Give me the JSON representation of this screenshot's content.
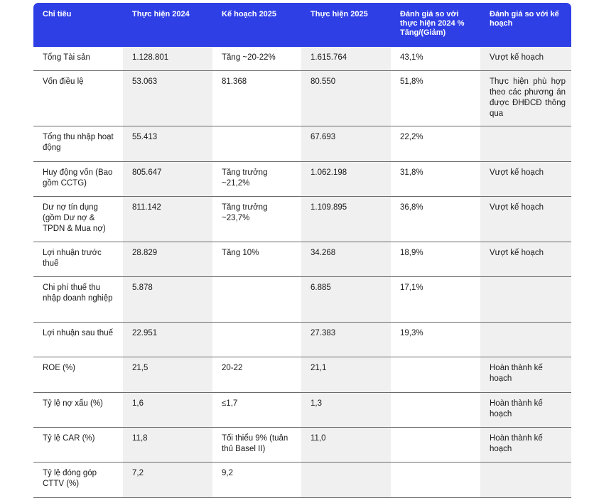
{
  "headers": [
    "Chỉ tiêu",
    "Thực hiện 2024",
    "Kế hoạch 2025",
    "Thực hiện 2025",
    "Đánh giá so với thực hiện 2024 % Tăng/(Giảm)",
    "Đánh giá so với kế hoạch"
  ],
  "rows": [
    [
      "Tổng Tài sản",
      "1.128.801",
      "Tăng ~20-22%",
      "1.615.764",
      "43,1%",
      "Vượt kế hoạch"
    ],
    [
      "Vốn điều lệ",
      "53.063",
      "81.368",
      "80.550",
      "51,8%",
      "Thực hiện phù hợp theo các phương án được ĐHĐCĐ thông qua"
    ],
    [
      "Tổng thu nhập hoạt động",
      "55.413",
      "",
      "67.693",
      "22,2%",
      ""
    ],
    [
      "Huy động vốn (Bao gồm CCTG)",
      "805.647",
      "Tăng trưởng ~21,2%",
      "1.062.198",
      "31,8%",
      "Vượt kế hoạch"
    ],
    [
      "Dư nợ tín dụng (gồm Dư nợ & TPDN & Mua nợ)",
      "811.142",
      "Tăng trưởng ~23,7%",
      "1.109.895",
      "36,8%",
      "Vượt kế hoạch"
    ],
    [
      "Lợi nhuận trước thuế",
      "28.829",
      "Tăng 10%",
      "34.268",
      "18,9%",
      "Vượt kế hoạch"
    ],
    [
      "Chi phí thuế thu nhập doanh nghiệp",
      "5.878",
      "",
      "6.885",
      "17,1%",
      ""
    ],
    [
      "Lợi nhuận sau thuế",
      "22.951",
      "",
      "27.383",
      "19,3%",
      ""
    ],
    [
      "ROE (%)",
      "21,5",
      "20-22",
      "21,1",
      "",
      "Hoàn thành kế hoạch"
    ],
    [
      "Tỷ lệ nợ xấu (%)",
      "1,6",
      "≤1,7",
      "1,3",
      "",
      "Hoàn thành kế hoạch"
    ],
    [
      "Tỷ lệ CAR (%)",
      "11,8",
      "Tối thiểu 9% (tuân thủ Basel II)",
      "11,0",
      "",
      "Hoàn thành kế hoạch"
    ],
    [
      "Tỷ lệ đóng góp CTTV (%)",
      "7,2",
      "9,2",
      "",
      "",
      ""
    ]
  ]
}
